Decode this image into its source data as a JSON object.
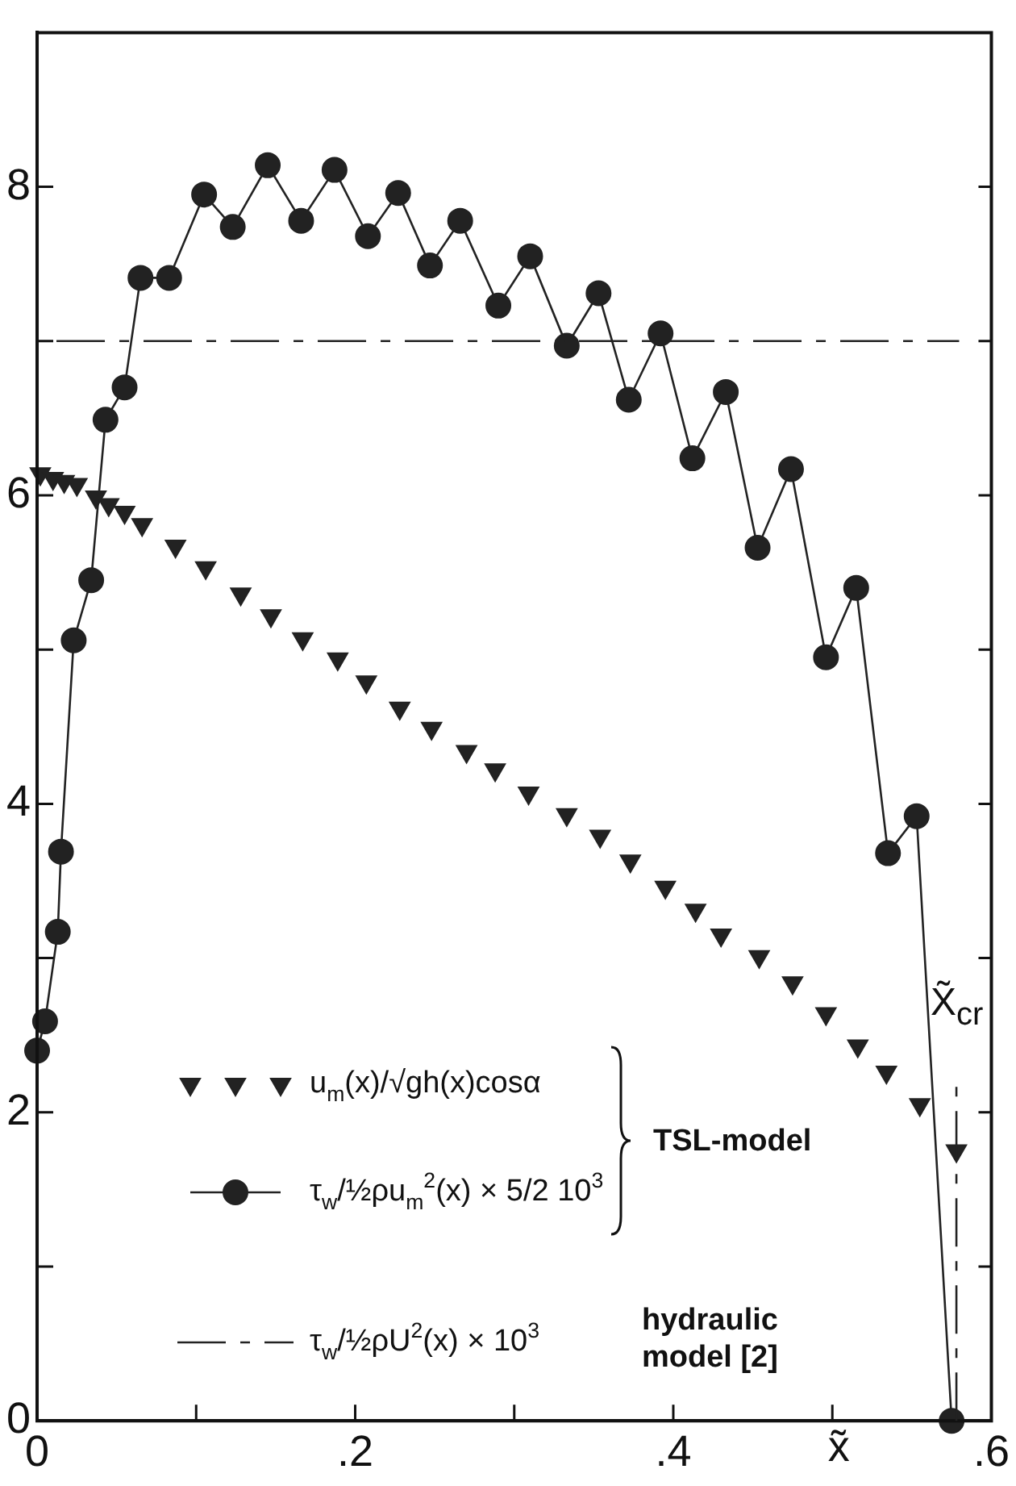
{
  "chart_data": {
    "type": "line",
    "xlabel": "x̃",
    "xlim": [
      0,
      0.6
    ],
    "xticks": [
      0,
      {
        "value": 0.1,
        "label": null
      },
      {
        "value": 0.2,
        "label": ".2"
      },
      {
        "value": 0.3,
        "label": null
      },
      {
        "value": 0.4,
        "label": ".4"
      },
      {
        "value": 0.5,
        "label": null
      },
      {
        "value": 0.6,
        "label": ".6"
      }
    ],
    "ylim": [
      0,
      9
    ],
    "yticks": [
      0,
      {
        "value": 1,
        "label": null
      },
      2,
      {
        "value": 3,
        "label": null
      },
      4,
      {
        "value": 5,
        "label": null
      },
      6,
      {
        "value": 7,
        "label": null
      },
      8
    ],
    "legend": "bottom left",
    "series": [
      {
        "name": "u$_{m}$(x)/√gh(x)cosα",
        "type": "scatter",
        "marker": "triangle",
        "color": "#222222",
        "x": [
          0.002,
          0.01,
          0.017,
          0.025,
          0.037,
          0.045,
          0.055,
          0.066,
          0.087,
          0.106,
          0.128,
          0.147,
          0.167,
          0.189,
          0.207,
          0.228,
          0.248,
          0.27,
          0.288,
          0.309,
          0.333,
          0.354,
          0.373,
          0.395,
          0.414,
          0.43,
          0.454,
          0.475,
          0.496,
          0.516,
          0.534,
          0.555,
          0.578
        ],
        "values": [
          6.14,
          6.11,
          6.09,
          6.07,
          5.99,
          5.94,
          5.89,
          5.81,
          5.67,
          5.53,
          5.36,
          5.22,
          5.07,
          4.94,
          4.79,
          4.62,
          4.49,
          4.34,
          4.22,
          4.07,
          3.93,
          3.79,
          3.63,
          3.46,
          3.31,
          3.15,
          3.01,
          2.84,
          2.64,
          2.43,
          2.26,
          2.05,
          1.75
        ]
      },
      {
        "name": "τ$_{w}$/½ρu$_{m}$$^{2}$(x) × 5/2 10$^{3}$",
        "type": "line",
        "marker": "circle",
        "color": "#222222",
        "x": [
          0,
          0.005,
          0.013,
          0.015,
          0.023,
          0.034,
          0.043,
          0.055,
          0.065,
          0.083,
          0.105,
          0.123,
          0.145,
          0.166,
          0.187,
          0.208,
          0.227,
          0.247,
          0.266,
          0.29,
          0.31,
          0.333,
          0.353,
          0.372,
          0.392,
          0.412,
          0.433,
          0.453,
          0.474,
          0.496,
          0.515,
          0.535,
          0.553,
          0.575
        ],
        "values": [
          2.4,
          2.59,
          3.17,
          3.69,
          5.06,
          5.45,
          6.49,
          6.7,
          7.41,
          7.41,
          7.95,
          7.74,
          8.14,
          7.78,
          8.11,
          7.68,
          7.96,
          7.49,
          7.78,
          7.23,
          7.55,
          6.97,
          7.31,
          6.62,
          7.05,
          6.24,
          6.67,
          5.66,
          6.17,
          4.95,
          5.4,
          3.68,
          3.92,
          0
        ]
      }
    ],
    "ref_lines": [
      {
        "axis": "y",
        "value": 7,
        "label": "τ$_{w}$/½ρU$^{2}$(x) × 10$^{3}$",
        "line_style": "dashed",
        "color": "#222222"
      },
      {
        "axis": "x",
        "value": 0.578,
        "label": "X̃$_{cr}$",
        "line_style": "dashed",
        "color": "#222222"
      }
    ],
    "annotations": [
      "TSL‑model",
      "hydraulic model [2]"
    ]
  }
}
